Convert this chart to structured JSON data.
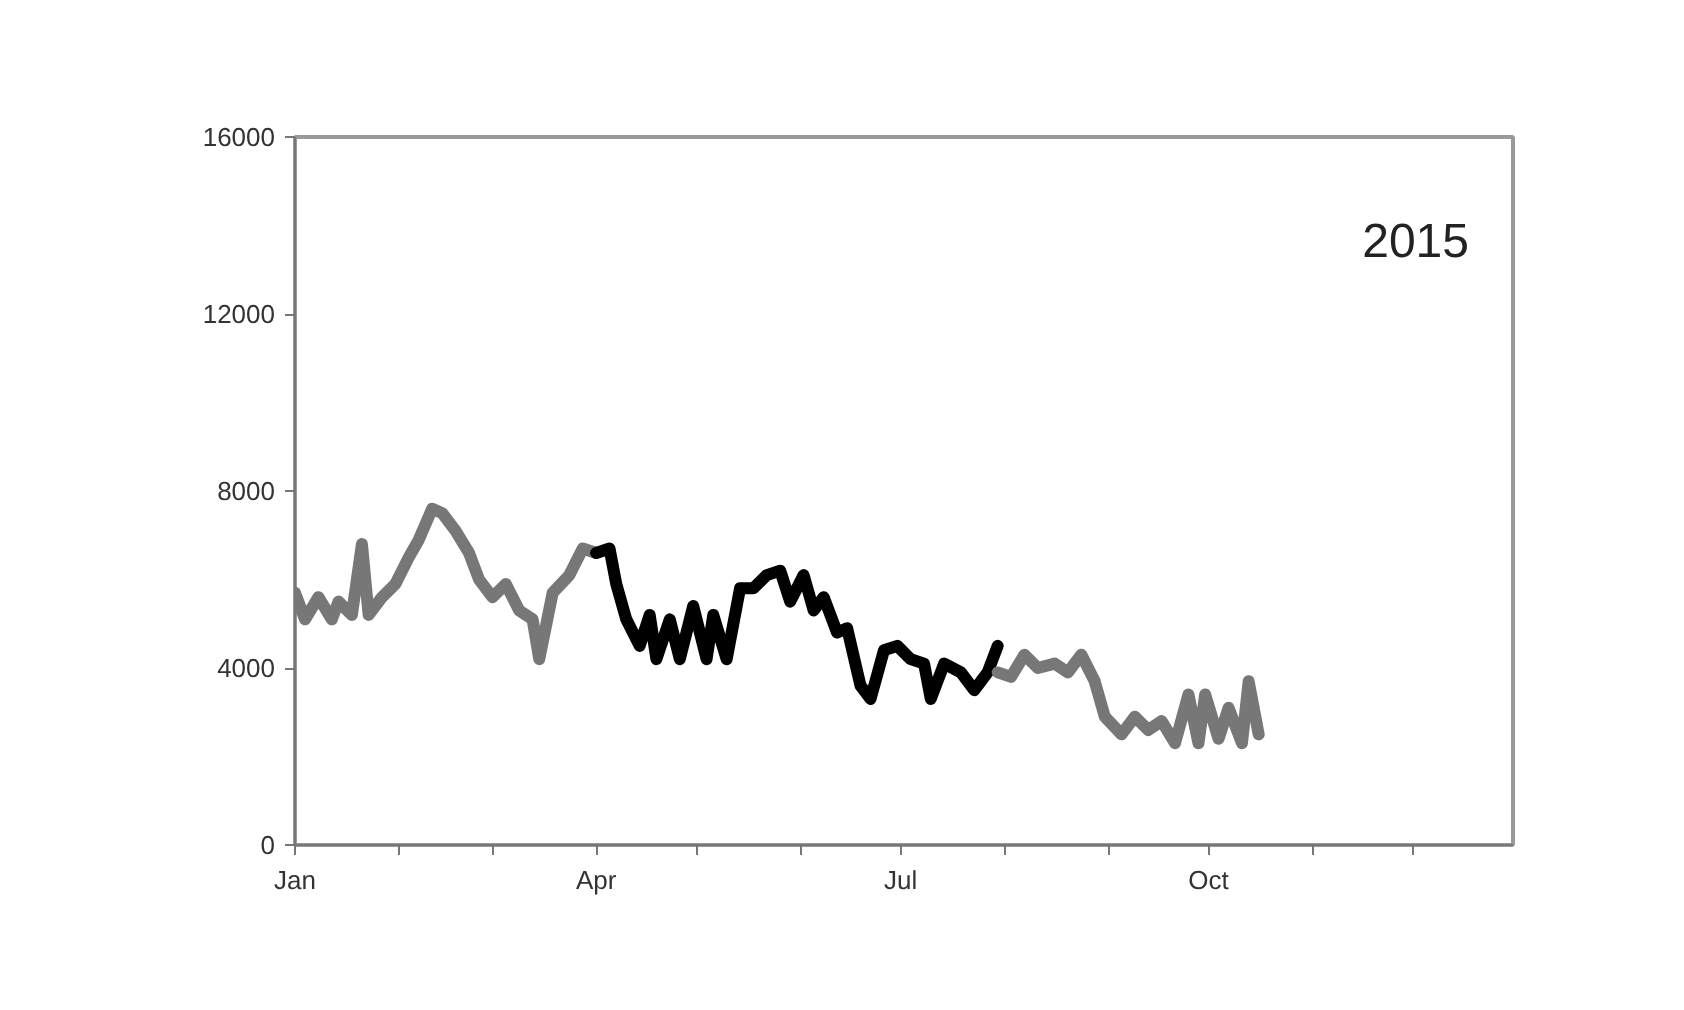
{
  "chart_data": {
    "type": "line",
    "annotations": [
      "2015"
    ],
    "xlim": [
      "2015-01-01",
      "2015-12-31"
    ],
    "xticks": [
      {
        "value": "2015-01-01",
        "label": "Jan"
      },
      {
        "value": "2015-02-01",
        "label": null
      },
      {
        "value": "2015-03-01",
        "label": null
      },
      {
        "value": "2015-04-01",
        "label": "Apr"
      },
      {
        "value": "2015-05-01",
        "label": null
      },
      {
        "value": "2015-06-01",
        "label": null
      },
      {
        "value": "2015-07-01",
        "label": "Jul"
      },
      {
        "value": "2015-08-01",
        "label": null
      },
      {
        "value": "2015-09-01",
        "label": null
      },
      {
        "value": "2015-10-01",
        "label": "Oct"
      },
      {
        "value": "2015-11-01",
        "label": null
      },
      {
        "value": "2015-12-01",
        "label": null
      }
    ],
    "ylim": [
      0,
      16000
    ],
    "yticks": [
      0,
      4000,
      8000,
      12000,
      16000
    ],
    "grid": false,
    "marker": "none",
    "line_style": "solid",
    "series": [
      {
        "color": "#777777",
        "x": [
          "2015-01-01",
          "2015-01-04",
          "2015-01-08",
          "2015-01-12",
          "2015-01-14",
          "2015-01-18",
          "2015-01-21",
          "2015-01-23",
          "2015-01-27",
          "2015-01-31",
          "2015-02-04",
          "2015-02-07",
          "2015-02-11",
          "2015-02-14",
          "2015-02-18",
          "2015-02-22",
          "2015-02-25",
          "2015-03-01",
          "2015-03-05",
          "2015-03-09",
          "2015-03-13",
          "2015-03-15",
          "2015-03-19",
          "2015-03-24",
          "2015-03-28",
          "2015-04-01"
        ],
        "values": [
          5700,
          5100,
          5600,
          5100,
          5500,
          5200,
          6800,
          5200,
          5600,
          5900,
          6500,
          6900,
          7600,
          7500,
          7100,
          6600,
          6000,
          5600,
          5900,
          5300,
          5100,
          4200,
          5700,
          6100,
          6700,
          6600
        ]
      },
      {
        "color": "#000000",
        "x": [
          "2015-04-01",
          "2015-04-05",
          "2015-04-07",
          "2015-04-10",
          "2015-04-14",
          "2015-04-17",
          "2015-04-19",
          "2015-04-23",
          "2015-04-26",
          "2015-04-30",
          "2015-05-04",
          "2015-05-06",
          "2015-05-10",
          "2015-05-14",
          "2015-05-18",
          "2015-05-22",
          "2015-05-26",
          "2015-05-29",
          "2015-06-02",
          "2015-06-05",
          "2015-06-08",
          "2015-06-12",
          "2015-06-15",
          "2015-06-19",
          "2015-06-22",
          "2015-06-26",
          "2015-06-30",
          "2015-07-04",
          "2015-07-08",
          "2015-07-10",
          "2015-07-14",
          "2015-07-19",
          "2015-07-23",
          "2015-07-27",
          "2015-07-30"
        ],
        "values": [
          6600,
          6700,
          5900,
          5100,
          4500,
          5200,
          4200,
          5100,
          4200,
          5400,
          4200,
          5200,
          4200,
          5800,
          5800,
          6100,
          6200,
          5500,
          6100,
          5300,
          5600,
          4800,
          4900,
          3600,
          3300,
          4400,
          4500,
          4200,
          4100,
          3300,
          4100,
          3900,
          3500,
          3900,
          4500
        ]
      },
      {
        "color": "#777777",
        "x": [
          "2015-07-30",
          "2015-08-03",
          "2015-08-07",
          "2015-08-11",
          "2015-08-16",
          "2015-08-20",
          "2015-08-24",
          "2015-08-28",
          "2015-08-31",
          "2015-09-05",
          "2015-09-09",
          "2015-09-13",
          "2015-09-17",
          "2015-09-21",
          "2015-09-25",
          "2015-09-28",
          "2015-09-30",
          "2015-10-04",
          "2015-10-07",
          "2015-10-11",
          "2015-10-13",
          "2015-10-16"
        ],
        "values": [
          3900,
          3800,
          4300,
          4000,
          4100,
          3900,
          4300,
          3700,
          2900,
          2500,
          2900,
          2600,
          2800,
          2300,
          3400,
          2300,
          3400,
          2400,
          3100,
          2300,
          3700,
          2500
        ]
      }
    ]
  }
}
